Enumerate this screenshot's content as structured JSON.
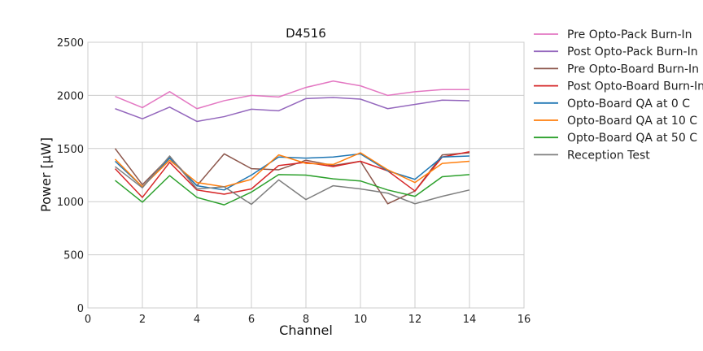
{
  "chart_data": {
    "type": "line",
    "title": "D4516",
    "xlabel": "Channel",
    "ylabel": "Power [μW]",
    "xlim": [
      0,
      16
    ],
    "ylim": [
      0,
      2500
    ],
    "xticks": [
      0,
      2,
      4,
      6,
      8,
      10,
      12,
      14,
      16
    ],
    "yticks": [
      0,
      500,
      1000,
      1500,
      2000,
      2500
    ],
    "grid": true,
    "legend_position": "outside-right",
    "x": [
      1,
      2,
      3,
      4,
      5,
      6,
      7,
      8,
      9,
      10,
      11,
      12,
      13,
      14
    ],
    "series": [
      {
        "name": "Pre Opto-Pack Burn-In",
        "color": "#e377c2",
        "values": [
          1990,
          1885,
          2035,
          1875,
          1950,
          2000,
          1985,
          2075,
          2135,
          2090,
          2000,
          2035,
          2055,
          2055
        ]
      },
      {
        "name": "Post Opto-Pack Burn-In",
        "color": "#9467bd",
        "values": [
          1875,
          1780,
          1890,
          1755,
          1800,
          1870,
          1855,
          1970,
          1980,
          1965,
          1875,
          1915,
          1955,
          1950
        ]
      },
      {
        "name": "Pre Opto-Board Burn-In",
        "color": "#8c564b",
        "values": [
          1500,
          1160,
          1420,
          1150,
          1450,
          1310,
          1300,
          1390,
          1340,
          1380,
          980,
          1100,
          1440,
          1460
        ]
      },
      {
        "name": "Post Opto-Board Burn-In",
        "color": "#d62728",
        "values": [
          1310,
          1040,
          1370,
          1110,
          1070,
          1120,
          1340,
          1370,
          1330,
          1380,
          1290,
          1100,
          1420,
          1470
        ]
      },
      {
        "name": "Opto-Board QA at 0 C",
        "color": "#1f77b4",
        "values": [
          1380,
          1140,
          1410,
          1150,
          1110,
          1250,
          1420,
          1410,
          1420,
          1450,
          1290,
          1210,
          1420,
          1430
        ]
      },
      {
        "name": "Opto-Board QA at 10 C",
        "color": "#ff7f0e",
        "values": [
          1400,
          1140,
          1390,
          1180,
          1140,
          1210,
          1440,
          1360,
          1350,
          1460,
          1300,
          1180,
          1360,
          1380
        ]
      },
      {
        "name": "Opto-Board QA at 50 C",
        "color": "#2ca02c",
        "values": [
          1200,
          995,
          1245,
          1040,
          970,
          1090,
          1255,
          1250,
          1215,
          1195,
          1110,
          1050,
          1235,
          1255
        ]
      },
      {
        "name": "Reception Test",
        "color": "#7f7f7f",
        "values": [
          1330,
          1130,
          1430,
          1120,
          1140,
          975,
          1205,
          1020,
          1150,
          1120,
          1080,
          980,
          1050,
          1110
        ]
      }
    ]
  }
}
